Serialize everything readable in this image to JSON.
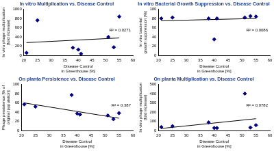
{
  "chart_data": [
    {
      "type": "scatter",
      "title": "In vitro Multiplication vs. Disease Control",
      "x_label": "Disease Control in Greenhouse [%]",
      "y_label": "In vitro phage multiplication [fold increase]",
      "xlim": [
        20,
        60
      ],
      "xticks": [
        20,
        25,
        30,
        35,
        40,
        45,
        50,
        55,
        60
      ],
      "ylim": [
        0,
        1000
      ],
      "yticks": [
        0,
        200,
        400,
        600,
        800,
        1000
      ],
      "grid": false,
      "annotations": [
        "R² = 0.0271"
      ],
      "series": [
        {
          "type": "scatter",
          "marker": "diamond",
          "color": "#000080",
          "x": [
            21,
            25,
            38,
            40,
            41,
            51,
            53,
            55
          ],
          "values": [
            60,
            760,
            170,
            130,
            40,
            400,
            180,
            840
          ]
        },
        {
          "type": "line",
          "line_style": "solid",
          "color": "#000000",
          "x": [
            21,
            55
          ],
          "values": [
            280,
            380
          ]
        }
      ]
    },
    {
      "type": "scatter",
      "title": "In vitro Bacterial Growth Suppression vs. Disease Control",
      "x_label": "Disease Control in Greenhouse [%]",
      "y_label": "In vitro bacterial growth suppression [%]",
      "xlim": [
        20,
        60
      ],
      "xticks": [
        20,
        25,
        30,
        35,
        40,
        45,
        50,
        55,
        60
      ],
      "ylim": [
        0,
        100
      ],
      "yticks": [
        0,
        20,
        40,
        60,
        80,
        100
      ],
      "grid": false,
      "annotations": [
        "R² = 0.0086"
      ],
      "series": [
        {
          "type": "scatter",
          "marker": "diamond",
          "color": "#000080",
          "x": [
            21,
            25,
            38,
            40,
            41,
            51,
            53,
            55
          ],
          "values": [
            80,
            82,
            80,
            35,
            80,
            82,
            85,
            84
          ]
        },
        {
          "type": "line",
          "line_style": "solid",
          "color": "#000000",
          "x": [
            21,
            55
          ],
          "values": [
            75,
            80
          ]
        }
      ]
    },
    {
      "type": "scatter",
      "title": "On planta Persistence vs. Disease Control",
      "x_label": "Disease Control in Greenhouse [%]",
      "y_label": "Phage persistence [% of original population]",
      "xlim": [
        20,
        60
      ],
      "xticks": [
        20,
        25,
        30,
        35,
        40,
        45,
        50,
        55,
        60
      ],
      "ylim": [
        0,
        100
      ],
      "yticks": [
        0,
        20,
        40,
        60,
        80,
        100
      ],
      "grid": false,
      "annotations": [
        "R² = 0.387"
      ],
      "series": [
        {
          "type": "scatter",
          "marker": "diamond",
          "color": "#000080",
          "x": [
            21,
            25,
            38,
            40,
            41,
            51,
            53,
            55
          ],
          "values": [
            57,
            52,
            77,
            37,
            35,
            33,
            25,
            38
          ]
        },
        {
          "type": "line",
          "line_style": "solid",
          "color": "#000000",
          "x": [
            21,
            55
          ],
          "values": [
            60,
            27
          ]
        }
      ]
    },
    {
      "type": "scatter",
      "title": "On planta Multiplication vs. Disease Control",
      "x_label": "Disease Control in Greenhouse [%]",
      "y_label": "In vitro phage multiplication [fold increase]",
      "xlim": [
        20,
        60
      ],
      "xticks": [
        20,
        25,
        30,
        35,
        40,
        45,
        50,
        55,
        60
      ],
      "ylim": [
        0,
        500
      ],
      "yticks": [
        0,
        100,
        200,
        300,
        400,
        500
      ],
      "grid": false,
      "annotations": [
        "R² = 0.0782"
      ],
      "series": [
        {
          "type": "scatter",
          "marker": "diamond",
          "color": "#000080",
          "x": [
            21,
            25,
            38,
            40,
            41,
            51,
            53,
            55
          ],
          "values": [
            40,
            50,
            90,
            30,
            30,
            400,
            35,
            60
          ]
        },
        {
          "type": "line",
          "line_style": "solid",
          "color": "#000000",
          "x": [
            21,
            55
          ],
          "values": [
            25,
            130
          ]
        }
      ]
    }
  ]
}
